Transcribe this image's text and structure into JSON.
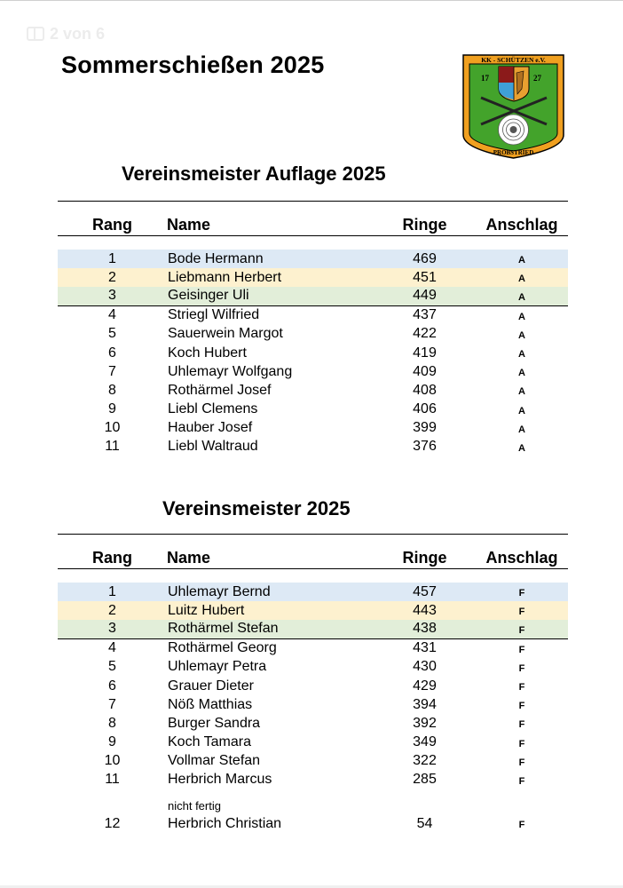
{
  "page_indicator": "2 von 6",
  "main_title": "Sommerschießen 2025",
  "logo": {
    "top_text": "KK - SCHÜTZEN e.V.",
    "year_left": "17",
    "year_right": "27",
    "bottom_text": "PROBSTRIED",
    "colors": {
      "frame": "#f0a020",
      "green": "#43a32b",
      "dark_red": "#8b1a1a",
      "blue": "#3fa0d8",
      "gold": "#e8a030"
    }
  },
  "tables": [
    {
      "title": "Vereinsmeister Auflage 2025",
      "headers": {
        "rang": "Rang",
        "name": "Name",
        "ringe": "Ringe",
        "anschlag": "Anschlag"
      },
      "rows": [
        {
          "rang": "1",
          "name": "Bode Hermann",
          "ringe": "469",
          "anschlag": "A"
        },
        {
          "rang": "2",
          "name": "Liebmann Herbert",
          "ringe": "451",
          "anschlag": "A"
        },
        {
          "rang": "3",
          "name": "Geisinger Uli",
          "ringe": "449",
          "anschlag": "A"
        },
        {
          "rang": "4",
          "name": "Striegl Wilfried",
          "ringe": "437",
          "anschlag": "A"
        },
        {
          "rang": "5",
          "name": "Sauerwein Margot",
          "ringe": "422",
          "anschlag": "A"
        },
        {
          "rang": "6",
          "name": "Koch Hubert",
          "ringe": "419",
          "anschlag": "A"
        },
        {
          "rang": "7",
          "name": "Uhlemayr Wolfgang",
          "ringe": "409",
          "anschlag": "A"
        },
        {
          "rang": "8",
          "name": "Rothärmel Josef",
          "ringe": "408",
          "anschlag": "A"
        },
        {
          "rang": "9",
          "name": "Liebl Clemens",
          "ringe": "406",
          "anschlag": "A"
        },
        {
          "rang": "10",
          "name": "Hauber Josef",
          "ringe": "399",
          "anschlag": "A"
        },
        {
          "rang": "11",
          "name": "Liebl Waltraud",
          "ringe": "376",
          "anschlag": "A"
        }
      ]
    },
    {
      "title": "Vereinsmeister 2025",
      "headers": {
        "rang": "Rang",
        "name": "Name",
        "ringe": "Ringe",
        "anschlag": "Anschlag"
      },
      "rows": [
        {
          "rang": "1",
          "name": "Uhlemayr Bernd",
          "ringe": "457",
          "anschlag": "F"
        },
        {
          "rang": "2",
          "name": "Luitz Hubert",
          "ringe": "443",
          "anschlag": "F"
        },
        {
          "rang": "3",
          "name": "Rothärmel Stefan",
          "ringe": "438",
          "anschlag": "F"
        },
        {
          "rang": "4",
          "name": "Rothärmel Georg",
          "ringe": "431",
          "anschlag": "F"
        },
        {
          "rang": "5",
          "name": "Uhlemayr Petra",
          "ringe": "430",
          "anschlag": "F"
        },
        {
          "rang": "6",
          "name": "Grauer Dieter",
          "ringe": "429",
          "anschlag": "F"
        },
        {
          "rang": "7",
          "name": "Nöß Matthias",
          "ringe": "394",
          "anschlag": "F"
        },
        {
          "rang": "8",
          "name": "Burger Sandra",
          "ringe": "392",
          "anschlag": "F"
        },
        {
          "rang": "9",
          "name": "Koch Tamara",
          "ringe": "349",
          "anschlag": "F"
        },
        {
          "rang": "10",
          "name": "Vollmar Stefan",
          "ringe": "322",
          "anschlag": "F"
        },
        {
          "rang": "11",
          "name": "Herbrich Marcus",
          "ringe": "285",
          "anschlag": "F"
        }
      ],
      "note": "nicht fertig",
      "extra_row": {
        "rang": "12",
        "name": "Herbrich Christian",
        "ringe": "54",
        "anschlag": "F"
      }
    }
  ]
}
